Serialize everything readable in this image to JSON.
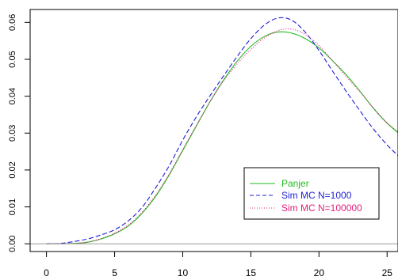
{
  "chart_data": {
    "type": "line",
    "title": "",
    "xlabel": "",
    "ylabel": "",
    "xlim": [
      -1.2,
      25.8
    ],
    "ylim": [
      -0.0021,
      0.0635
    ],
    "x_ticks": [
      0,
      5,
      10,
      15,
      20,
      25
    ],
    "x_tick_labels": [
      "0",
      "5",
      "10",
      "15",
      "20",
      "25"
    ],
    "y_ticks": [
      0.0,
      0.01,
      0.02,
      0.03,
      0.04,
      0.05,
      0.06
    ],
    "y_tick_labels": [
      "0.00",
      "0.01",
      "0.02",
      "0.03",
      "0.04",
      "0.05",
      "0.06"
    ],
    "grid": false,
    "legend_position": "bottom-right",
    "reference_line_y": 0,
    "series": [
      {
        "name": "Panjer",
        "color": "#22bb22",
        "dash": "solid",
        "x": [
          0,
          2,
          3,
          4,
          5,
          6,
          7,
          8,
          9,
          10,
          11,
          12,
          13,
          14,
          15,
          16,
          17,
          18,
          19,
          20,
          21,
          22,
          23,
          24,
          25,
          26
        ],
        "y": [
          0.0,
          0.0001,
          0.0004,
          0.0013,
          0.0027,
          0.0048,
          0.0082,
          0.0128,
          0.0186,
          0.0253,
          0.0319,
          0.0385,
          0.0444,
          0.0495,
          0.0535,
          0.0562,
          0.0574,
          0.0571,
          0.0556,
          0.0531,
          0.0496,
          0.0458,
          0.0414,
          0.0367,
          0.0327,
          0.0295
        ]
      },
      {
        "name": "Sim MC N=1000",
        "color": "#1f1fd6",
        "dash": "dashed",
        "x": [
          0,
          1,
          2,
          3,
          4,
          5,
          6,
          7,
          8,
          9,
          10,
          11,
          12,
          13,
          14,
          15,
          16,
          17,
          18,
          19,
          20,
          21,
          22,
          23,
          24,
          25,
          26
        ],
        "y": [
          0.0,
          0.0001,
          0.0006,
          0.0013,
          0.0024,
          0.0038,
          0.0062,
          0.0098,
          0.0151,
          0.0211,
          0.0281,
          0.0344,
          0.0401,
          0.0455,
          0.0508,
          0.0556,
          0.0593,
          0.0612,
          0.0606,
          0.0573,
          0.0524,
          0.0468,
          0.0413,
          0.0361,
          0.0311,
          0.0268,
          0.0232
        ]
      },
      {
        "name": "Sim MC N=100000",
        "color": "#e0207a",
        "dash": "dotted",
        "x": [
          0,
          2,
          3,
          4,
          5,
          6,
          7,
          8,
          9,
          10,
          11,
          12,
          13,
          14,
          15,
          16,
          17,
          18,
          19,
          20,
          21,
          22,
          23,
          24,
          25,
          26
        ],
        "y": [
          0.0,
          0.0001,
          0.0005,
          0.0014,
          0.0029,
          0.0051,
          0.0085,
          0.0131,
          0.0189,
          0.0255,
          0.0321,
          0.0385,
          0.0441,
          0.0488,
          0.0527,
          0.0558,
          0.0578,
          0.0582,
          0.0567,
          0.0537,
          0.0496,
          0.0453,
          0.0412,
          0.0368,
          0.0328,
          0.0298
        ]
      }
    ]
  }
}
